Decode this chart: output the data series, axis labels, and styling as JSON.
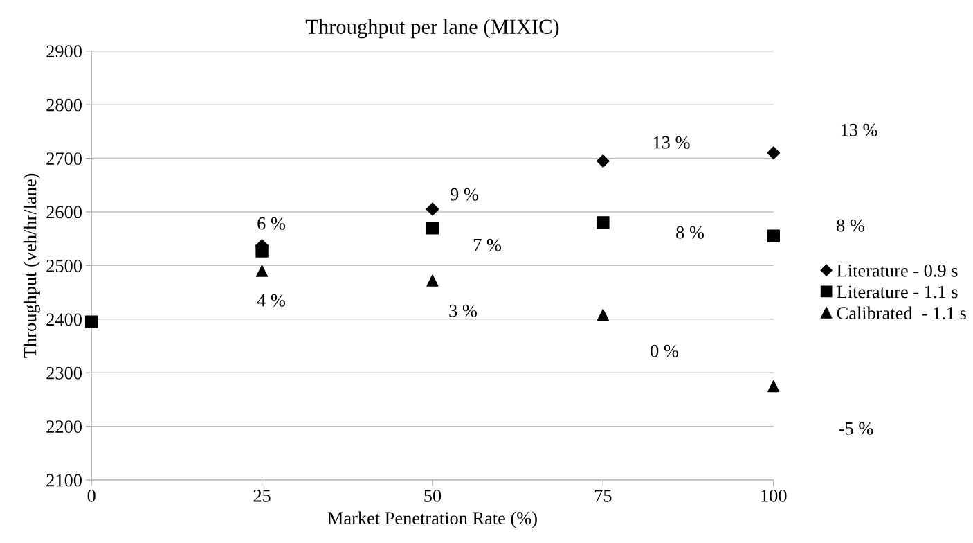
{
  "chart_data": {
    "type": "scatter",
    "title": "Throughput per lane (MIXIC)",
    "xlabel": "Market Penetration Rate (%)",
    "ylabel": "Throughput (veh/hr/lane)",
    "xlim": [
      0,
      100
    ],
    "xticks": [
      0,
      25,
      50,
      75,
      100
    ],
    "ylim": [
      2100,
      2900
    ],
    "yticks": [
      2100,
      2200,
      2300,
      2400,
      2500,
      2600,
      2700,
      2800,
      2900
    ],
    "grid": "y",
    "legend": "right",
    "series": [
      {
        "name": "Literature - 0.9 s",
        "color": "#000000",
        "marker": "diamond",
        "x": [
          25,
          50,
          75,
          100
        ],
        "values": [
          2537,
          2605,
          2695,
          2710
        ]
      },
      {
        "name": "Literature - 1.1 s",
        "color": "#000000",
        "marker": "square",
        "x": [
          0,
          25,
          50,
          75,
          100
        ],
        "values": [
          2395,
          2527,
          2570,
          2580,
          2555
        ]
      },
      {
        "name": "Calibrated  - 1.1 s",
        "color": "#000000",
        "marker": "triangle",
        "x": [
          25,
          50,
          75,
          100
        ],
        "values": [
          2490,
          2472,
          2408,
          2275
        ]
      }
    ],
    "annotations": [
      "6 %",
      "4 %",
      "9 %",
      "7 %",
      "3 %",
      "13 %",
      "8 %",
      "0 %",
      "13 %",
      "8 %",
      "-5 %"
    ]
  }
}
